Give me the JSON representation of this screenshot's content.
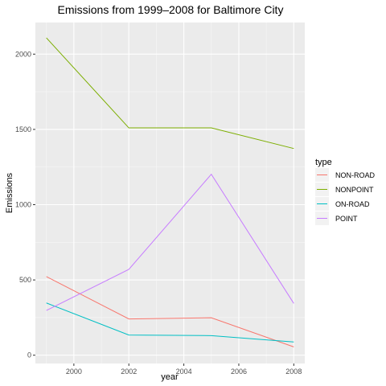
{
  "chart_data": {
    "type": "line",
    "title": "Emissions from 1999–2008 for Baltimore City",
    "xlabel": "year",
    "ylabel": "Emissions",
    "xlim": [
      1998.6,
      2008.4
    ],
    "ylim": [
      -55,
      2210
    ],
    "x_ticks": [
      2000,
      2002,
      2004,
      2006,
      2008
    ],
    "y_ticks": [
      0,
      500,
      1000,
      1500,
      2000
    ],
    "grid": true,
    "legend": {
      "title": "type",
      "position": "right"
    },
    "x": [
      1999,
      2002,
      2005,
      2008
    ],
    "series": [
      {
        "name": "NON-ROAD",
        "color": "#F8766D",
        "values": [
          522,
          241,
          249,
          55
        ]
      },
      {
        "name": "NONPOINT",
        "color": "#7CAE00",
        "values": [
          2108,
          1510,
          1510,
          1373
        ]
      },
      {
        "name": "ON-ROAD",
        "color": "#00BFC4",
        "values": [
          347,
          134,
          130,
          88
        ]
      },
      {
        "name": "POINT",
        "color": "#C77CFF",
        "values": [
          297,
          570,
          1202,
          344
        ]
      }
    ]
  },
  "colors": {
    "panel_background": "#EBEBEB",
    "grid_major": "#FFFFFF",
    "tick_text": "#4D4D4D"
  }
}
